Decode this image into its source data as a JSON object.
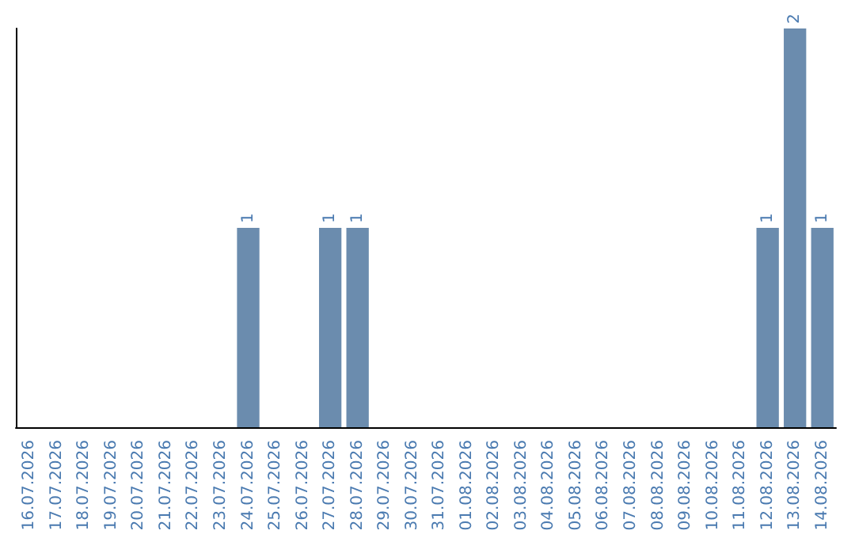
{
  "chart_data": {
    "type": "bar",
    "categories": [
      "16.07.2026",
      "17.07.2026",
      "18.07.2026",
      "19.07.2026",
      "20.07.2026",
      "21.07.2026",
      "22.07.2026",
      "23.07.2026",
      "24.07.2026",
      "25.07.2026",
      "26.07.2026",
      "27.07.2026",
      "28.07.2026",
      "29.07.2026",
      "30.07.2026",
      "31.07.2026",
      "01.08.2026",
      "02.08.2026",
      "03.08.2026",
      "04.08.2026",
      "05.08.2026",
      "06.08.2026",
      "07.08.2026",
      "08.08.2026",
      "09.08.2026",
      "10.08.2026",
      "11.08.2026",
      "12.08.2026",
      "13.08.2026",
      "14.08.2026"
    ],
    "values": [
      0,
      0,
      0,
      0,
      0,
      0,
      0,
      0,
      1,
      0,
      0,
      1,
      1,
      0,
      0,
      0,
      0,
      0,
      0,
      0,
      0,
      0,
      0,
      0,
      0,
      0,
      0,
      1,
      2,
      1
    ],
    "value_labels": [
      null,
      null,
      null,
      null,
      null,
      null,
      null,
      null,
      "1",
      null,
      null,
      "1",
      "1",
      null,
      null,
      null,
      null,
      null,
      null,
      null,
      null,
      null,
      null,
      null,
      null,
      null,
      null,
      "1",
      "2",
      "1"
    ],
    "color": "#6b8cae",
    "tick_labels": "x"
  }
}
